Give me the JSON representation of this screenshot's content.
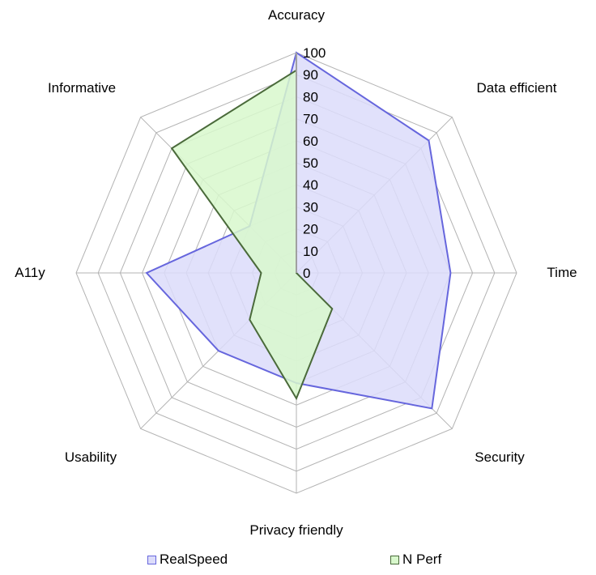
{
  "chart_data": {
    "type": "radar",
    "title": "",
    "categories": [
      "Accuracy",
      "Data efficient",
      "Time",
      "Security",
      "Privacy friendly",
      "Usability",
      "A11y",
      "Informative"
    ],
    "series": [
      {
        "name": "RealSpeed",
        "values": [
          100,
          85,
          70,
          87,
          50,
          50,
          68,
          30
        ],
        "fill": "#dcdcfa",
        "stroke": "#6666dd"
      },
      {
        "name": "N Perf",
        "values": [
          92,
          0,
          0,
          23,
          57,
          30,
          16,
          80
        ],
        "fill": "#d8f8cc",
        "stroke": "#4a6a3a"
      }
    ],
    "radial_ticks": [
      "0",
      "10",
      "20",
      "30",
      "40",
      "50",
      "60",
      "70",
      "80",
      "90",
      "100"
    ],
    "rlim": [
      0,
      100
    ],
    "grid": true,
    "legend_position": "bottom"
  },
  "legend": {
    "items": [
      {
        "label": "RealSpeed",
        "color": "#dcdcfa",
        "border": "#6666dd"
      },
      {
        "label": "N Perf",
        "color": "#d8f8cc",
        "border": "#4a6a3a"
      }
    ]
  }
}
